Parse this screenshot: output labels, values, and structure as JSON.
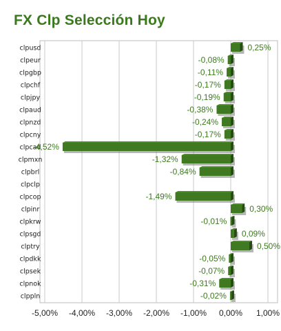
{
  "title": "FX Clp Selección Hoy",
  "colors": {
    "bar_front": "#3f7a22",
    "bar_top": "#4e8f2c",
    "bar_side": "#254c12",
    "shadow": "#7a7a7a",
    "label": "#3d7a1f",
    "title": "#3a7a1d",
    "grid": "#c8c8c8"
  },
  "chart_data": {
    "type": "bar",
    "orientation": "horizontal",
    "title": "FX Clp Selección Hoy",
    "xlim": [
      -0.05,
      0.01
    ],
    "x_ticks": [
      -0.05,
      -0.04,
      -0.03,
      -0.02,
      -0.01,
      0.0,
      0.01
    ],
    "x_tick_labels": [
      "-5,00%",
      "-4,00%",
      "-3,00%",
      "-2,00%",
      "-1,00%",
      "0,00%",
      "1,00%"
    ],
    "grid": true,
    "categories": [
      "clpusd",
      "clpeur",
      "clpgbp",
      "clpchf",
      "clpjpy",
      "clpaud",
      "clpnzd",
      "clpcny",
      "clpcad",
      "clpmxn",
      "clpbrl",
      "clpclp",
      "clpcop",
      "clpinr",
      "clpkrw",
      "clpsgd",
      "clptry",
      "clpdkk",
      "clpsek",
      "clpnok",
      "clppln"
    ],
    "values": [
      0.0025,
      -0.0008,
      -0.0011,
      -0.0017,
      -0.0019,
      -0.0038,
      -0.0024,
      -0.0017,
      -0.0452,
      -0.0132,
      -0.0084,
      null,
      -0.0149,
      0.003,
      -0.0001,
      0.0009,
      0.005,
      -0.0005,
      -0.0007,
      -0.0031,
      -0.0002
    ],
    "labels": [
      "0,25%",
      "-0,08%",
      "-0,11%",
      "-0,17%",
      "-0,19%",
      "-0,38%",
      "-0,24%",
      "-0,17%",
      "-4,52%",
      "-1,32%",
      "-0,84%",
      "",
      "-1,49%",
      "0,30%",
      "-0,01%",
      "0,09%",
      "0,50%",
      "-0,05%",
      "-0,07%",
      "-0,31%",
      "-0,02%"
    ]
  }
}
